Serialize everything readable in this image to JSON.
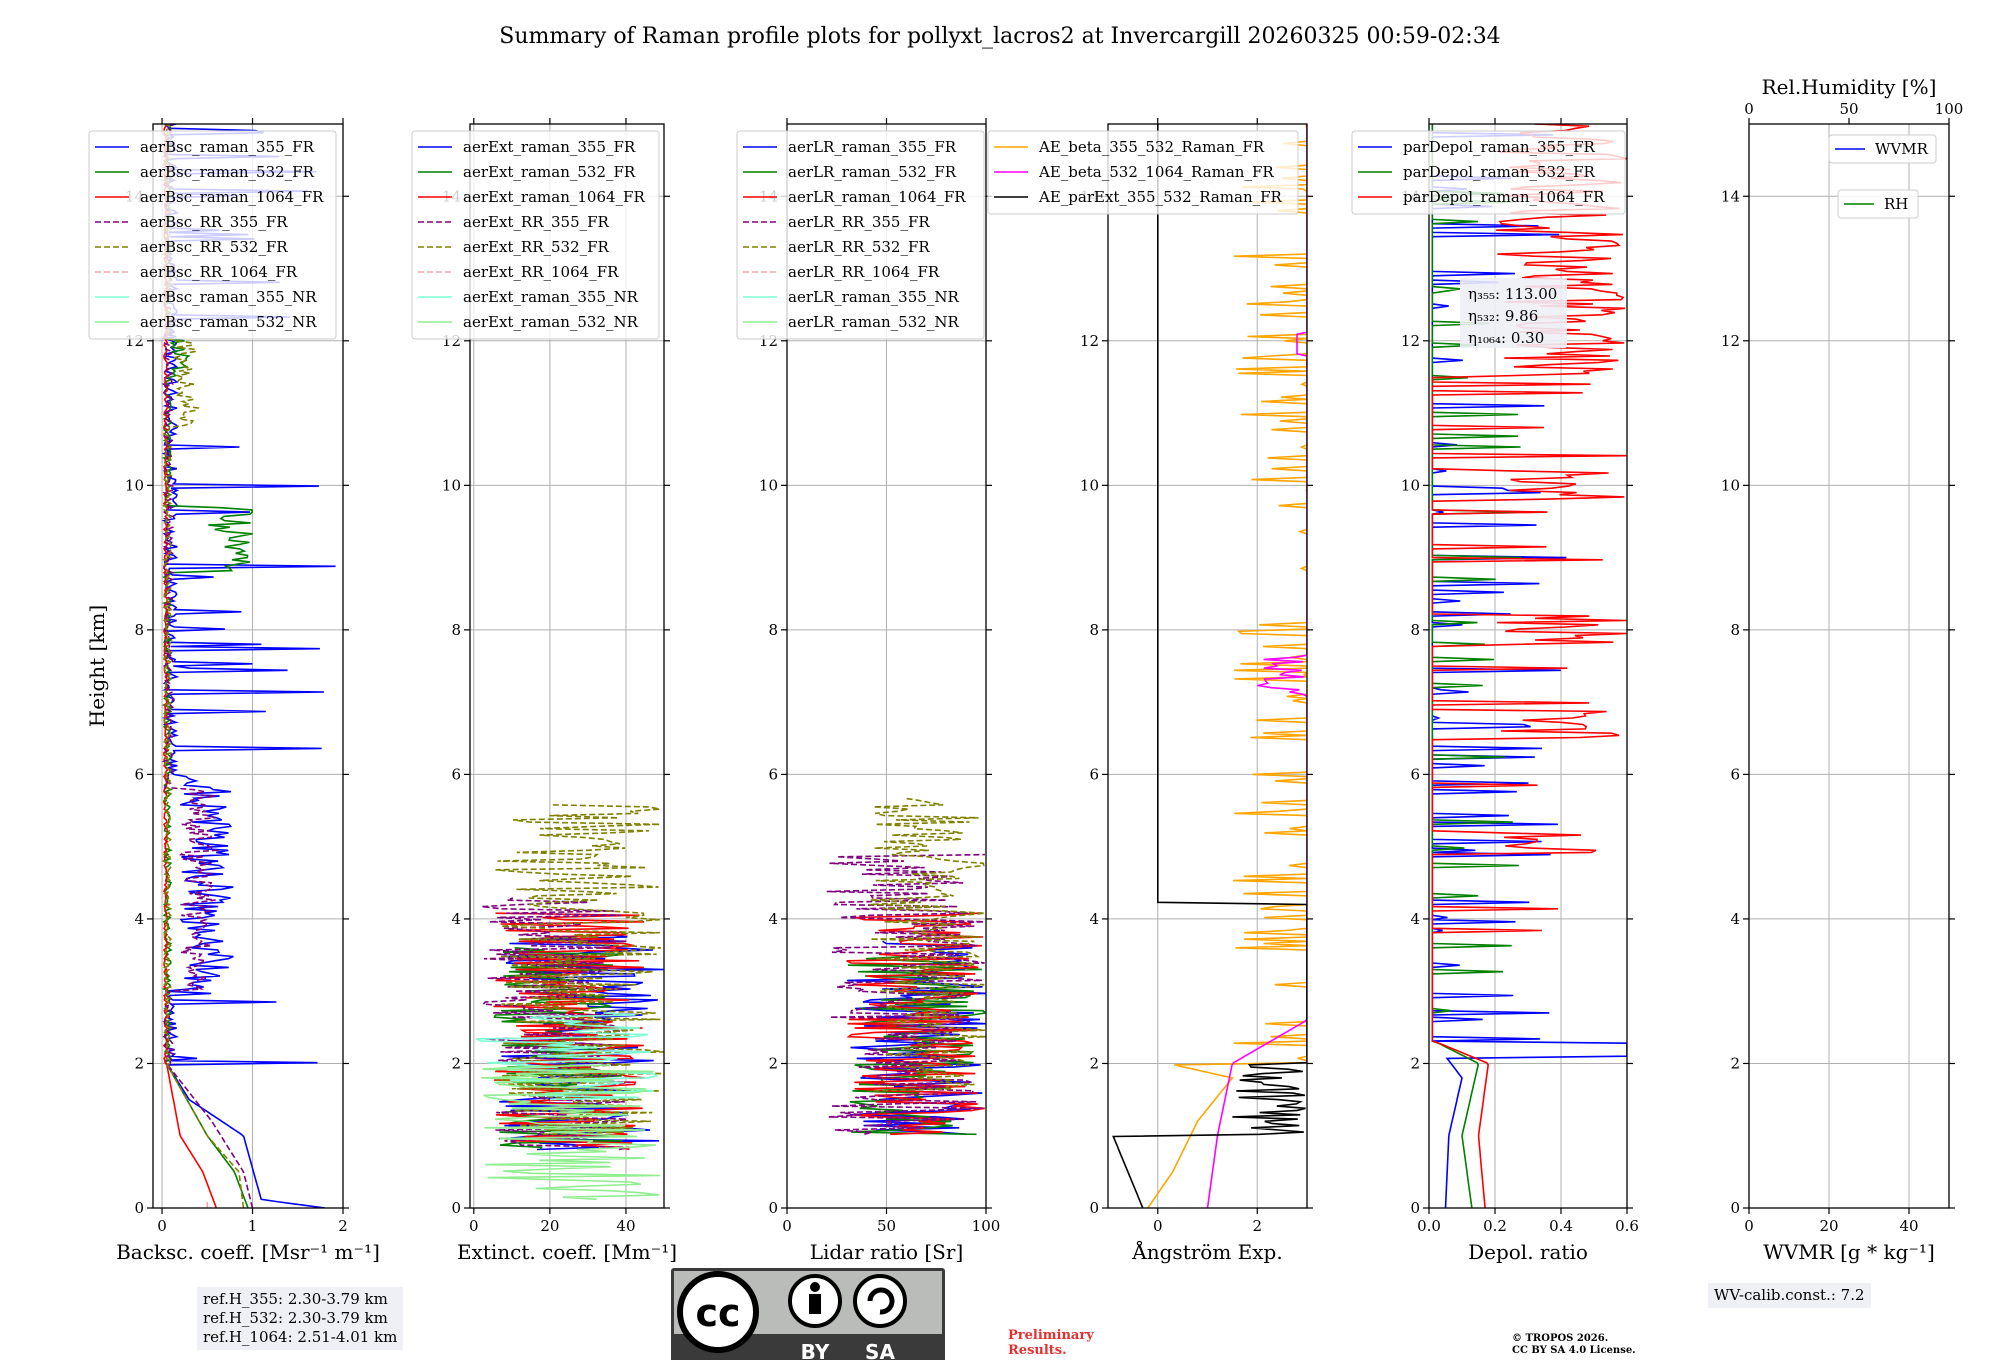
{
  "chart_data": {
    "type": "line",
    "title": "Summary of Raman profile plots for pollyxt_lacros2 at Invercargill 20260325 00:59-02:34",
    "ylabel": "Height [km]",
    "ylim": [
      0,
      15
    ],
    "yticks": [
      0,
      2,
      4,
      6,
      8,
      10,
      12,
      14
    ],
    "panels": [
      {
        "id": "backscatter",
        "xlabel": "Backsc. coeff. [Msr⁻¹ m⁻¹]",
        "xlim": [
          -0.1,
          2
        ],
        "xticks": [
          0,
          1,
          2
        ],
        "series": [
          {
            "name": "aerBsc_raman_355_FR",
            "color": "#0000ff",
            "dash": false
          },
          {
            "name": "aerBsc_raman_532_FR",
            "color": "#008000",
            "dash": false
          },
          {
            "name": "aerBsc_raman_1064_FR",
            "color": "#ff0000",
            "dash": false
          },
          {
            "name": "aerBsc_RR_355_FR",
            "color": "#800080",
            "dash": true
          },
          {
            "name": "aerBsc_RR_532_FR",
            "color": "#808000",
            "dash": true
          },
          {
            "name": "aerBsc_RR_1064_FR",
            "color": "#f4a6a6",
            "dash": true
          },
          {
            "name": "aerBsc_raman_355_NR",
            "color": "#7fffd4",
            "dash": false
          },
          {
            "name": "aerBsc_raman_532_NR",
            "color": "#90ee90",
            "dash": false
          }
        ]
      },
      {
        "id": "extinction",
        "xlabel": "Extinct. coeff. [Mm⁻¹]",
        "xlim": [
          -1,
          50
        ],
        "xticks": [
          0,
          20,
          40
        ],
        "series": [
          {
            "name": "aerExt_raman_355_FR",
            "color": "#0000ff",
            "dash": false
          },
          {
            "name": "aerExt_raman_532_FR",
            "color": "#008000",
            "dash": false
          },
          {
            "name": "aerExt_raman_1064_FR",
            "color": "#ff0000",
            "dash": false
          },
          {
            "name": "aerExt_RR_355_FR",
            "color": "#800080",
            "dash": true
          },
          {
            "name": "aerExt_RR_532_FR",
            "color": "#808000",
            "dash": true
          },
          {
            "name": "aerExt_RR_1064_FR",
            "color": "#f4a6a6",
            "dash": true
          },
          {
            "name": "aerExt_raman_355_NR",
            "color": "#7fffd4",
            "dash": false
          },
          {
            "name": "aerExt_raman_532_NR",
            "color": "#90ee90",
            "dash": false
          }
        ]
      },
      {
        "id": "lidar-ratio",
        "xlabel": "Lidar ratio [Sr]",
        "xlim": [
          0,
          100
        ],
        "xticks": [
          0,
          50,
          100
        ],
        "series": [
          {
            "name": "aerLR_raman_355_FR",
            "color": "#0000ff",
            "dash": false
          },
          {
            "name": "aerLR_raman_532_FR",
            "color": "#008000",
            "dash": false
          },
          {
            "name": "aerLR_raman_1064_FR",
            "color": "#ff0000",
            "dash": false
          },
          {
            "name": "aerLR_RR_355_FR",
            "color": "#800080",
            "dash": true
          },
          {
            "name": "aerLR_RR_532_FR",
            "color": "#808000",
            "dash": true
          },
          {
            "name": "aerLR_RR_1064_FR",
            "color": "#f4a6a6",
            "dash": true
          },
          {
            "name": "aerLR_raman_355_NR",
            "color": "#7fffd4",
            "dash": false
          },
          {
            "name": "aerLR_raman_532_NR",
            "color": "#90ee90",
            "dash": false
          }
        ]
      },
      {
        "id": "angstrom",
        "xlabel": "Ångström Exp.",
        "xlim": [
          -1,
          3
        ],
        "xticks": [
          0,
          2
        ],
        "series": [
          {
            "name": "AE_beta_355_532_Raman_FR",
            "color": "#ffa500",
            "dash": false
          },
          {
            "name": "AE_beta_532_1064_Raman_FR",
            "color": "#ff00ff",
            "dash": false
          },
          {
            "name": "AE_parExt_355_532_Raman_FR",
            "color": "#000000",
            "dash": false
          }
        ]
      },
      {
        "id": "depol",
        "xlabel": "Depol. ratio",
        "xlim": [
          0,
          0.6
        ],
        "xticks": [
          0.0,
          0.2,
          0.4,
          0.6
        ],
        "tick_labels": [
          "0.0",
          "0.2",
          "0.4",
          "0.6"
        ],
        "series": [
          {
            "name": "parDepol_raman_355_FR",
            "color": "#0000ff",
            "dash": false
          },
          {
            "name": "parDepol_raman_532_FR",
            "color": "#008000",
            "dash": false
          },
          {
            "name": "parDepol_raman_1064_FR",
            "color": "#ff0000",
            "dash": false
          }
        ],
        "annotation": [
          "η₃₅₅: 113.00",
          "η₅₃₂: 9.86",
          "η₁₀₆₄: 0.30"
        ]
      },
      {
        "id": "wvmr",
        "xlabel": "WVMR [g * kg⁻¹]",
        "xlim": [
          0,
          50
        ],
        "xticks": [
          0,
          20,
          40
        ],
        "top_xlabel": "Rel.Humidity [%]",
        "top_xlim": [
          0,
          100
        ],
        "top_xticks": [
          0,
          50,
          100
        ],
        "series": [
          {
            "name": "WVMR",
            "color": "#0000ff",
            "dash": false
          },
          {
            "name": "RH",
            "color": "#008000",
            "dash": false
          }
        ]
      }
    ]
  },
  "info": {
    "ref_h": [
      "ref.H_355: 2.30-3.79 km",
      "ref.H_532: 2.30-3.79 km",
      "ref.H_1064: 2.51-4.01 km"
    ],
    "wv_calib": "WV-calib.const.: 7.2",
    "preliminary": [
      "Preliminary",
      "Results."
    ],
    "copyright": [
      "© TROPOS 2026.",
      "CC BY SA 4.0 License."
    ],
    "license_badge": {
      "cc": "cc",
      "by": "BY",
      "sa": "SA"
    }
  }
}
